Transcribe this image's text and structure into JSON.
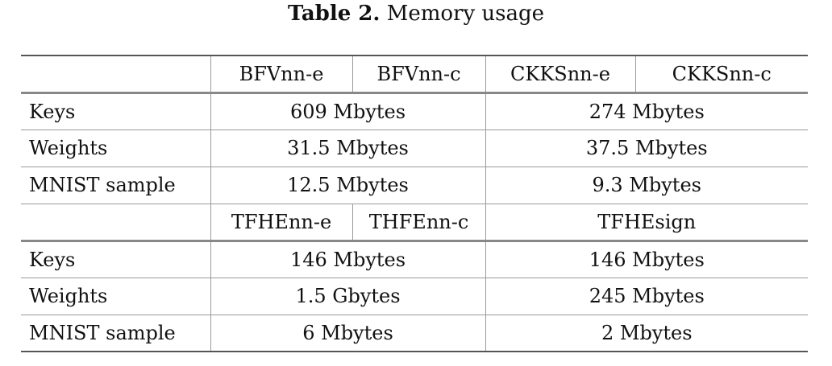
{
  "caption": {
    "label": "Table 2.",
    "text": " Memory usage"
  },
  "section1": {
    "headers": [
      "BFVnn-e",
      "BFVnn-c",
      "CKKSnn-e",
      "CKKSnn-c"
    ],
    "rows": [
      {
        "label": "Keys",
        "bfv": "609 Mbytes",
        "ckks": "274 Mbytes"
      },
      {
        "label": "Weights",
        "bfv": "31.5 Mbytes",
        "ckks": "37.5 Mbytes"
      },
      {
        "label": "MNIST sample",
        "bfv": "12.5 Mbytes",
        "ckks": "9.3 Mbytes"
      }
    ]
  },
  "section2": {
    "headers": [
      "TFHEnn-e",
      "THFEnn-c",
      "TFHEsign"
    ],
    "rows": [
      {
        "label": "Keys",
        "tfhenn": "146 Mbytes",
        "tfhesign": "146 Mbytes"
      },
      {
        "label": "Weights",
        "tfhenn": "1.5 Gbytes",
        "tfhesign": "245 Mbytes"
      },
      {
        "label": "MNIST sample",
        "tfhenn": "6 Mbytes",
        "tfhesign": "2 Mbytes"
      }
    ]
  }
}
